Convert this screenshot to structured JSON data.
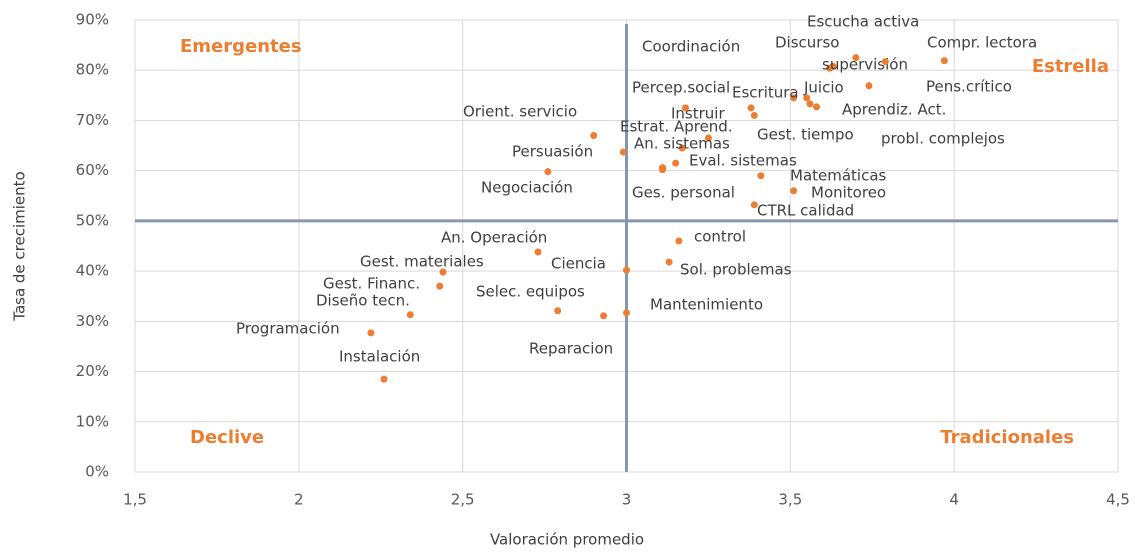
{
  "chart_data": {
    "type": "scatter",
    "x_label": "Valoración promedio",
    "y_label": "Tasa de crecimiento",
    "color": "#ed7d31",
    "grid": true,
    "xlim": [
      1.5,
      4.5
    ],
    "xticks": [
      {
        "value": 1.5,
        "label": "1,5"
      },
      2,
      {
        "value": 2.5,
        "label": "2,5"
      },
      3,
      {
        "value": 3.5,
        "label": "3,5"
      },
      4,
      {
        "value": 4.5,
        "label": "4,5"
      }
    ],
    "ylim": [
      0,
      90
    ],
    "yticks": [
      {
        "value": 0,
        "label": "0%"
      },
      {
        "value": 10,
        "label": "10%"
      },
      {
        "value": 20,
        "label": "20%"
      },
      {
        "value": 30,
        "label": "30%"
      },
      {
        "value": 40,
        "label": "40%"
      },
      {
        "value": 50,
        "label": "50%"
      },
      {
        "value": 60,
        "label": "60%"
      },
      {
        "value": 70,
        "label": "70%"
      },
      {
        "value": 80,
        "label": "80%"
      },
      {
        "value": 90,
        "label": "90%"
      }
    ],
    "quadrant_x": 3,
    "quadrant_y": 50,
    "quadrant_color": "#8497b0",
    "quadrant_labels": [
      "Emergentes",
      "Estrella",
      "Declive",
      "Tradicionales"
    ],
    "labels": [
      "Escucha activa",
      "Compr. lectora",
      "Discurso",
      "supervisión",
      "Pens.crítico",
      "Juicio",
      "Escritura",
      "probl. complejos",
      "Gest. tiempo",
      "Aprendiz. Act.",
      "Coordinación",
      "Instruir",
      "Percep.social",
      "Estrat. Aprend.",
      "Orient. servicio",
      "An. sistemas",
      "Persuasión",
      "Eval. sistemas",
      "Ges. personal",
      "Negociación",
      "Matemáticas",
      "Monitoreo",
      "CTRL calidad",
      "control",
      "Sol. problemas",
      "Ciencia",
      "An. Operación",
      "Gest. materiales",
      "Gest. Financ.",
      "Diseño tecn.",
      "Programación",
      "Instalación",
      "Selec. equipos",
      "Reparacion",
      "Mantenimiento",
      null
    ],
    "x": [
      3.7,
      3.97,
      3.63,
      3.62,
      3.79,
      3.74,
      3.51,
      3.55,
      3.56,
      3.58,
      3.38,
      3.39,
      3.18,
      3.25,
      2.9,
      3.17,
      2.99,
      3.15,
      3.11,
      2.76,
      3.41,
      3.51,
      3.39,
      3.16,
      3.13,
      3.0,
      2.73,
      2.44,
      2.43,
      2.34,
      2.22,
      2.26,
      2.79,
      2.93,
      3.0,
      3.11
    ],
    "values": [
      82.5,
      81.9,
      80.8,
      80.4,
      81.7,
      76.9,
      74.5,
      74.5,
      73.3,
      72.7,
      72.5,
      71.0,
      72.5,
      66.5,
      67,
      64.5,
      63.7,
      61.5,
      60.2,
      59.8,
      59,
      56,
      53.2,
      46,
      41.8,
      40.2,
      43.8,
      39.8,
      37,
      31.3,
      27.7,
      18.5,
      32.1,
      31.1,
      31.7,
      60.6
    ]
  }
}
